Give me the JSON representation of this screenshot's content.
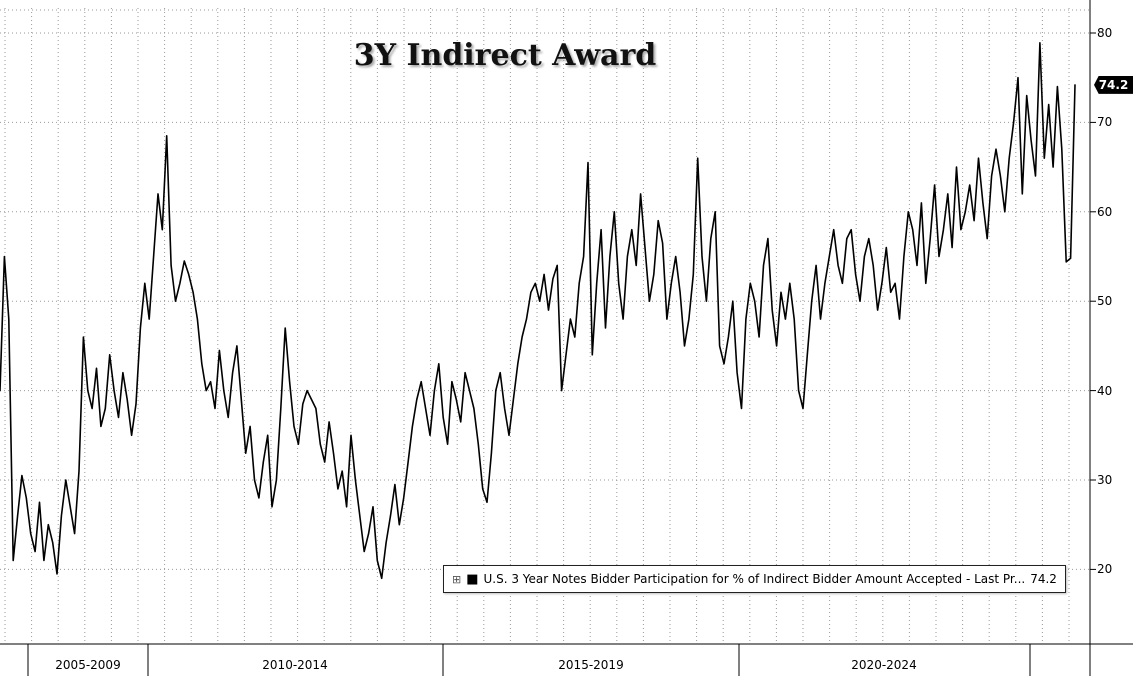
{
  "title": "3Y Indirect Award",
  "last_price_badge": "74.2",
  "legend": {
    "expand_icon": "⊞",
    "series_marker": "■",
    "label": "U.S. 3 Year Notes Bidder Participation for % of Indirect Bidder Amount Accepted - Last Pr...",
    "value": "74.2"
  },
  "chart_data": {
    "type": "line",
    "title": "3Y Indirect Award",
    "x_period_labels": [
      "2005-2009",
      "2010-2014",
      "2015-2019",
      "2020-2024"
    ],
    "x_range": "2005-2025",
    "y_ticks": [
      80,
      70,
      60,
      50,
      40,
      30,
      20
    ],
    "ylim": [
      12,
      82
    ],
    "grid": "dotted",
    "legend_position": "bottom-right",
    "line_color": "#000000",
    "series": [
      {
        "name": "U.S. 3 Year Notes Bidder Participation for % of Indirect Bidder Amount Accepted",
        "last_price": 74.2,
        "values": [
          40,
          55,
          48,
          21,
          26,
          30.5,
          28,
          24,
          22,
          27.5,
          21,
          25,
          23,
          19.5,
          26,
          30,
          27,
          24,
          31,
          46,
          40,
          38,
          42.5,
          36,
          38,
          44,
          40,
          37,
          42,
          39,
          35,
          38.5,
          47,
          52,
          48,
          55,
          62,
          58,
          68.5,
          54,
          50,
          52,
          54.5,
          53,
          51,
          48,
          43,
          40,
          41,
          38,
          44.5,
          40,
          37,
          42,
          45,
          39,
          33,
          36,
          30,
          28,
          32,
          35,
          27,
          30,
          38,
          47,
          41,
          36,
          34,
          38.5,
          40,
          39,
          38,
          34,
          32,
          36.5,
          33,
          29,
          31,
          27,
          35,
          30,
          26,
          22,
          24,
          27,
          21,
          19,
          23,
          26,
          29.5,
          25,
          28,
          32,
          36,
          39,
          41,
          38,
          35,
          40,
          43,
          37,
          34,
          41,
          39,
          36.5,
          42,
          40,
          38,
          34,
          29,
          27.5,
          33,
          40,
          42,
          38,
          35,
          39,
          43,
          46,
          48,
          51,
          52,
          50,
          53,
          49,
          52.5,
          54,
          40,
          44,
          48,
          46,
          52,
          55,
          65.5,
          44,
          52,
          58,
          47,
          55,
          60,
          52,
          48,
          55,
          58,
          54,
          62,
          56,
          50,
          53,
          59,
          56.5,
          48,
          52,
          55,
          51,
          45,
          48,
          53,
          66,
          55,
          50,
          57,
          60,
          45,
          43,
          46,
          50,
          42,
          38,
          48,
          52,
          50,
          46,
          54,
          57,
          49,
          45,
          51,
          48,
          52,
          48,
          40,
          38,
          44,
          50,
          54,
          48,
          52,
          55,
          58,
          54,
          52,
          57,
          58,
          53,
          50,
          55,
          57,
          54,
          49,
          52,
          56,
          51,
          52,
          48,
          55,
          60,
          58,
          54,
          61,
          52,
          57,
          63,
          55,
          58,
          62,
          56,
          65,
          58,
          60,
          63,
          59,
          66,
          61,
          57,
          64,
          67,
          64,
          60,
          66,
          70,
          75,
          62,
          73,
          68,
          64,
          78.9,
          66,
          72,
          65,
          74,
          67,
          54.4,
          54.8,
          74.2
        ]
      }
    ]
  }
}
